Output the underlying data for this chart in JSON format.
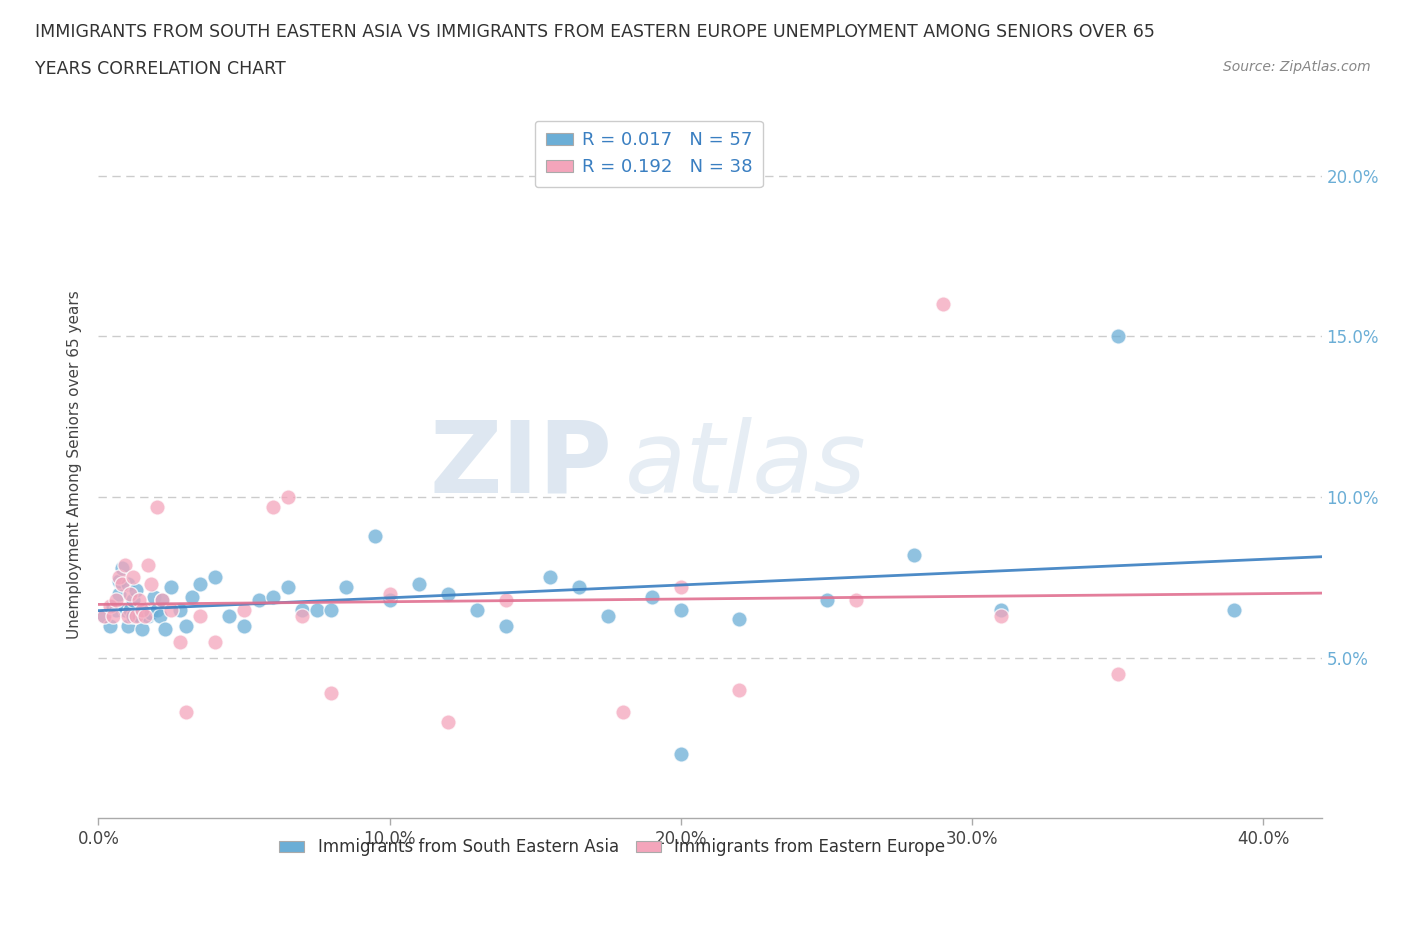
{
  "title_line1": "IMMIGRANTS FROM SOUTH EASTERN ASIA VS IMMIGRANTS FROM EASTERN EUROPE UNEMPLOYMENT AMONG SENIORS OVER 65",
  "title_line2": "YEARS CORRELATION CHART",
  "source": "Source: ZipAtlas.com",
  "ylabel": "Unemployment Among Seniors over 65 years",
  "xlim": [
    0.0,
    0.42
  ],
  "ylim": [
    0.0,
    0.22
  ],
  "xticks": [
    0.0,
    0.1,
    0.2,
    0.3,
    0.4
  ],
  "xtick_labels": [
    "0.0%",
    "10.0%",
    "20.0%",
    "30.0%",
    "40.0%"
  ],
  "yticks": [
    0.05,
    0.1,
    0.15,
    0.2
  ],
  "ytick_labels": [
    "5.0%",
    "10.0%",
    "15.0%",
    "20.0%"
  ],
  "legend1_label": "Immigrants from South Eastern Asia",
  "legend2_label": "Immigrants from Eastern Europe",
  "R1": 0.017,
  "N1": 57,
  "R2": 0.192,
  "N2": 38,
  "color_blue": "#6baed6",
  "color_pink": "#f4a5bb",
  "watermark_zip": "ZIP",
  "watermark_atlas": "atlas",
  "grid_color": "#cccccc",
  "bg_color": "#ffffff",
  "blue_x": [
    0.002,
    0.004,
    0.005,
    0.006,
    0.007,
    0.007,
    0.008,
    0.009,
    0.01,
    0.01,
    0.011,
    0.012,
    0.012,
    0.013,
    0.014,
    0.015,
    0.016,
    0.017,
    0.018,
    0.019,
    0.02,
    0.021,
    0.022,
    0.023,
    0.025,
    0.028,
    0.03,
    0.032,
    0.035,
    0.04,
    0.045,
    0.05,
    0.055,
    0.06,
    0.065,
    0.07,
    0.075,
    0.08,
    0.085,
    0.095,
    0.1,
    0.11,
    0.12,
    0.13,
    0.14,
    0.155,
    0.165,
    0.175,
    0.19,
    0.2,
    0.22,
    0.25,
    0.28,
    0.31,
    0.35,
    0.39,
    0.2
  ],
  "blue_y": [
    0.063,
    0.06,
    0.066,
    0.065,
    0.07,
    0.074,
    0.078,
    0.065,
    0.06,
    0.073,
    0.065,
    0.063,
    0.068,
    0.071,
    0.063,
    0.059,
    0.065,
    0.063,
    0.064,
    0.069,
    0.065,
    0.063,
    0.068,
    0.059,
    0.072,
    0.065,
    0.06,
    0.069,
    0.073,
    0.075,
    0.063,
    0.06,
    0.068,
    0.069,
    0.072,
    0.065,
    0.065,
    0.065,
    0.072,
    0.088,
    0.068,
    0.073,
    0.07,
    0.065,
    0.06,
    0.075,
    0.072,
    0.063,
    0.069,
    0.065,
    0.062,
    0.068,
    0.082,
    0.065,
    0.15,
    0.065,
    0.02
  ],
  "pink_x": [
    0.002,
    0.004,
    0.005,
    0.006,
    0.007,
    0.008,
    0.009,
    0.01,
    0.011,
    0.012,
    0.013,
    0.014,
    0.015,
    0.016,
    0.017,
    0.018,
    0.02,
    0.022,
    0.025,
    0.028,
    0.03,
    0.035,
    0.04,
    0.05,
    0.06,
    0.065,
    0.07,
    0.08,
    0.1,
    0.12,
    0.14,
    0.18,
    0.2,
    0.22,
    0.26,
    0.29,
    0.31,
    0.35
  ],
  "pink_y": [
    0.063,
    0.066,
    0.063,
    0.068,
    0.075,
    0.073,
    0.079,
    0.063,
    0.07,
    0.075,
    0.063,
    0.068,
    0.065,
    0.063,
    0.079,
    0.073,
    0.097,
    0.068,
    0.065,
    0.055,
    0.033,
    0.063,
    0.055,
    0.065,
    0.097,
    0.1,
    0.063,
    0.039,
    0.07,
    0.03,
    0.068,
    0.033,
    0.072,
    0.04,
    0.068,
    0.16,
    0.063,
    0.045
  ]
}
